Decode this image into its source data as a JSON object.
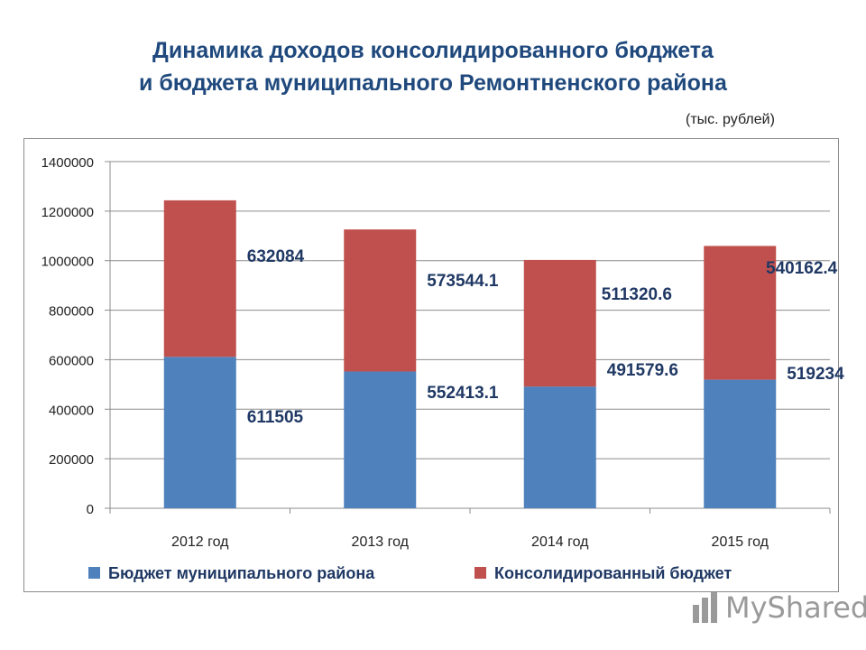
{
  "title_lines": [
    "Динамика доходов консолидированного бюджета",
    "и бюджета муниципального  Ремонтненского района"
  ],
  "units_label": "(тыс. рублей)",
  "watermark": "MyShared",
  "chart_data": {
    "type": "bar",
    "stacked": true,
    "categories": [
      "2012 год",
      "2013 год",
      "2014 год",
      "2015 год"
    ],
    "series": [
      {
        "name": "Бюджет муниципального района",
        "color": "#4f81bd",
        "values": [
          611505,
          552413.1,
          491579.6,
          519234
        ],
        "labels": [
          "611505",
          "552413.1",
          "491579.6",
          "519234"
        ]
      },
      {
        "name": "Консолидированный бюджет",
        "color": "#c0504d",
        "values": [
          632084,
          573544.1,
          511320.6,
          540162.4
        ],
        "labels": [
          "632084",
          "573544.1",
          "511320.6",
          "540162.4"
        ]
      }
    ],
    "ylim": [
      0,
      1400000
    ],
    "yticks": [
      "0",
      "200000",
      "400000",
      "600000",
      "800000",
      "1000000",
      "1200000",
      "1400000"
    ],
    "grid": true,
    "legend": "bottom",
    "label_color": "#1f3864"
  }
}
